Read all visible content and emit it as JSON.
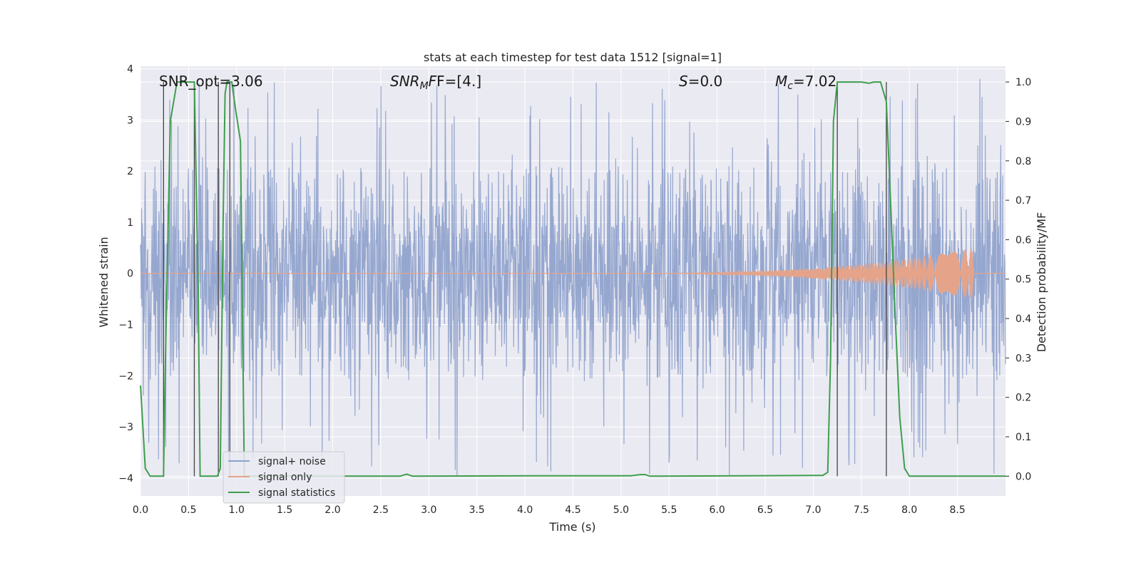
{
  "chart_data": {
    "type": "line",
    "title": "stats at each timestep for test data 1512 [signal=1]",
    "xlabel": "Time (s)",
    "ylabel_left": "Whitened strain",
    "ylabel_right": "Detection probability/MF",
    "xlim": [
      0.0,
      9.0
    ],
    "ylim_left": [
      -4.35,
      4.05
    ],
    "ylim_right": [
      -0.05,
      1.04
    ],
    "xticks": [
      "0.0",
      "0.5",
      "1.0",
      "1.5",
      "2.0",
      "2.5",
      "3.0",
      "3.5",
      "4.0",
      "4.5",
      "5.0",
      "5.5",
      "6.0",
      "6.5",
      "7.0",
      "7.5",
      "8.0",
      "8.5"
    ],
    "yticks_left": [
      "4",
      "3",
      "2",
      "1",
      "0",
      "−1",
      "−2",
      "−3",
      "−4"
    ],
    "yticks_right": [
      "1.0",
      "0.9",
      "0.8",
      "0.7",
      "0.6",
      "0.5",
      "0.4",
      "0.3",
      "0.2",
      "0.1",
      "0.0"
    ],
    "grid": true,
    "legend_position": "lower-left",
    "annotations": [
      "SNR_opt=3.06",
      "SNR",
      "M",
      "F=[4.]",
      "S",
      "=0.0",
      "M",
      "c",
      "=7.02"
    ],
    "series": [
      {
        "name": "signal+ noise",
        "color": "#8da0cb",
        "axis": "left",
        "band": {
          "core_min": -0.95,
          "core_max": 1.0,
          "typical_peak": 2.1,
          "max_peak": 3.85,
          "min_trough": -4.0
        }
      },
      {
        "name": "signal only",
        "color": "#e5a48a",
        "axis": "left",
        "chirp": {
          "start_time": 4.6,
          "end_time": 8.67,
          "peak_amplitude": 0.5
        }
      },
      {
        "name": "signal statistics",
        "color": "#3f9e4d",
        "axis": "right",
        "x": [
          0.0,
          0.05,
          0.1,
          0.2,
          0.24,
          0.26,
          0.31,
          0.38,
          0.43,
          0.5,
          0.56,
          0.6,
          0.62,
          0.7,
          0.76,
          0.8,
          0.83,
          0.86,
          0.88,
          0.9,
          0.93,
          0.95,
          0.99,
          1.04,
          1.08,
          1.12,
          1.2,
          2.7,
          2.77,
          2.83,
          2.9,
          4.1,
          5.1,
          5.2,
          5.25,
          5.3,
          5.4,
          7.1,
          7.15,
          7.18,
          7.21,
          7.25,
          7.28,
          7.3,
          7.35,
          7.5,
          7.58,
          7.63,
          7.7,
          7.76,
          7.8,
          7.85,
          7.9,
          7.95,
          8.0,
          8.5,
          9.0
        ],
        "y": [
          0.23,
          0.02,
          0.0,
          0.0,
          0.0,
          0.3,
          0.9,
          1.0,
          1.0,
          1.0,
          1.0,
          0.47,
          0.0,
          0.0,
          0.0,
          0.0,
          0.02,
          0.65,
          0.97,
          1.0,
          1.0,
          1.0,
          0.93,
          0.85,
          0.0,
          0.0,
          0.0,
          0.0,
          0.005,
          0.0,
          0.0,
          0.001,
          0.001,
          0.004,
          0.004,
          0.0,
          0.0,
          0.002,
          0.01,
          0.3,
          0.9,
          1.0,
          1.0,
          1.0,
          1.0,
          1.0,
          0.997,
          1.0,
          1.0,
          0.95,
          0.72,
          0.42,
          0.15,
          0.02,
          0.0,
          0.0,
          0.0
        ]
      }
    ],
    "vertical_lines_s": [
      0.24,
      0.56,
      0.81,
      0.93,
      7.25,
      7.76
    ],
    "legend": [
      "signal+ noise",
      "signal only",
      "signal statistics"
    ]
  }
}
